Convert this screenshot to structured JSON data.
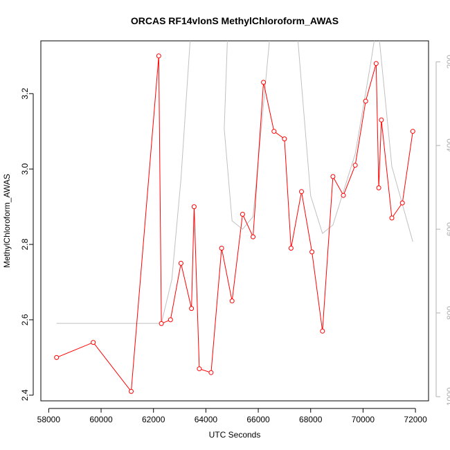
{
  "chart_data": {
    "type": "line",
    "title": "ORCAS RF14vlonS MethylChloroform_AWAS",
    "xlabel": "UTC Seconds",
    "ylabel": "MethylChloroform_AWAS",
    "xlim": [
      57700,
      72500
    ],
    "ylim": [
      2.385,
      3.34
    ],
    "xticks": [
      58000,
      60000,
      62000,
      64000,
      66000,
      68000,
      70000,
      72000
    ],
    "yticks": [
      2.4,
      2.6,
      2.8,
      3.0,
      3.2
    ],
    "ytick_labels": [
      "2.4",
      "2.6",
      "2.8",
      "3.0",
      "3.2"
    ],
    "y2lim": [
      1010,
      150
    ],
    "y2ticks": [
      200,
      400,
      600,
      800,
      1000
    ],
    "grid": false,
    "series": [
      {
        "color": "#ff0000",
        "axis": "left",
        "markers": "open-circle",
        "x": [
          58300,
          59700,
          61150,
          62200,
          62300,
          62650,
          63050,
          63450,
          63550,
          63750,
          64200,
          64600,
          65000,
          65400,
          65800,
          66200,
          66600,
          67000,
          67250,
          67650,
          68050,
          68450,
          68850,
          69250,
          69700,
          70100,
          70500,
          70600,
          70700,
          71100,
          71500,
          71900
        ],
        "values": [
          2.5,
          2.54,
          2.41,
          3.3,
          2.59,
          2.6,
          2.75,
          2.63,
          2.9,
          2.47,
          2.46,
          2.79,
          2.65,
          2.88,
          2.82,
          3.23,
          3.1,
          3.08,
          2.79,
          2.94,
          2.78,
          2.57,
          2.98,
          2.93,
          3.01,
          3.18,
          3.28,
          2.95,
          3.13,
          2.87,
          2.91,
          3.1
        ]
      },
      {
        "color": "#c0c0c0",
        "axis": "right",
        "x": [
          58300,
          62300,
          62700,
          63050,
          63450,
          64850,
          64700,
          65000,
          65400,
          65800,
          66500,
          67450,
          68000,
          68450,
          68850,
          69700,
          70300,
          70550,
          71100,
          71900
        ],
        "values": [
          825,
          825,
          720,
          480,
          100,
          100,
          360,
          580,
          600,
          570,
          100,
          100,
          520,
          610,
          590,
          420,
          200,
          100,
          450,
          630
        ]
      }
    ]
  }
}
